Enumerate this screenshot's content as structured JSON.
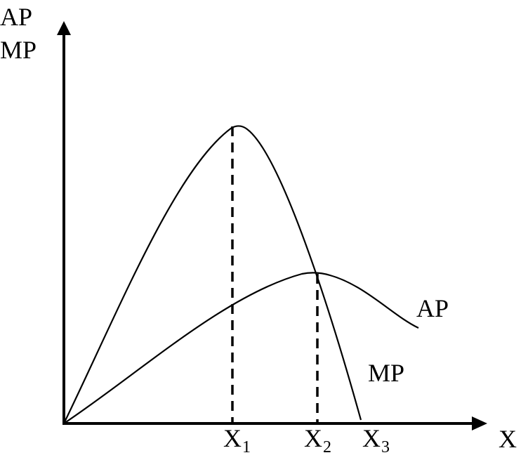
{
  "axes": {
    "y_label_top": "AP",
    "y_label_bottom": "MP",
    "x_label": "X"
  },
  "curves": {
    "ap_label": "AP",
    "mp_label": "MP"
  },
  "x_marks": [
    {
      "letter": "X",
      "sub": "1"
    },
    {
      "letter": "X",
      "sub": "2"
    },
    {
      "letter": "X",
      "sub": "3"
    }
  ],
  "colors": {
    "line": "#000000",
    "background": "#ffffff"
  }
}
